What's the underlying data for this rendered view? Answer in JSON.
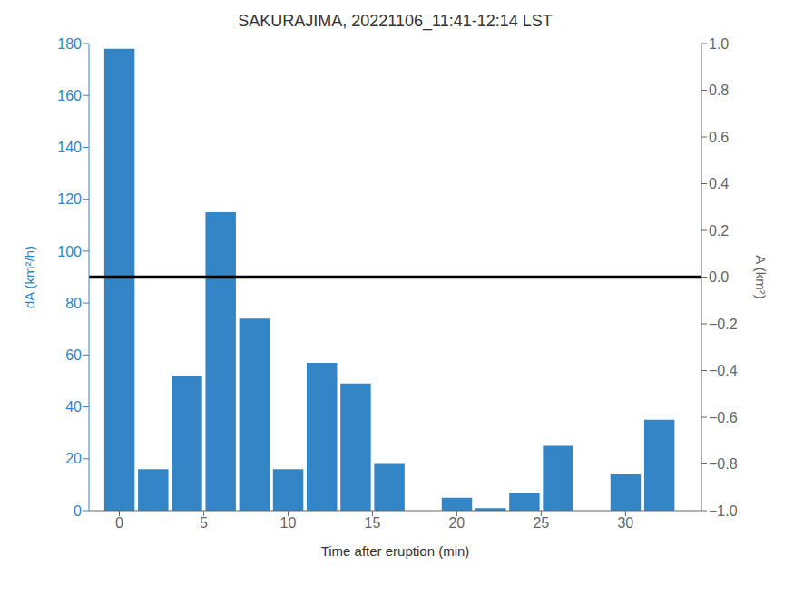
{
  "chart_data": {
    "type": "bar",
    "title": "SAKURAJIMA, 20221106_11:41-12:14 LST",
    "x_label": "Time after eruption (min)",
    "y_label": "dA (km²/h)",
    "y2_label": "A (km²)",
    "x": [
      0,
      2,
      4,
      6,
      8,
      10,
      12,
      14,
      16,
      20,
      22,
      24,
      26,
      30,
      32
    ],
    "values": [
      178,
      16,
      52,
      115,
      74,
      16,
      57,
      49,
      18,
      5,
      1,
      7,
      25,
      14,
      35
    ],
    "color": "#3385C6",
    "xlim": [
      -1.8,
      34.5
    ],
    "xticks": [
      0,
      5,
      10,
      15,
      20,
      25,
      30
    ],
    "ylim": [
      0,
      180
    ],
    "yticks": [
      0,
      20,
      40,
      60,
      80,
      100,
      120,
      140,
      160,
      180
    ],
    "y2lim": [
      -1,
      1
    ],
    "y2ticks": [
      {
        "value": -1.0,
        "label": "−1.0"
      },
      {
        "value": -0.8,
        "label": "−0.8"
      },
      {
        "value": -0.6,
        "label": "−0.6"
      },
      {
        "value": -0.4,
        "label": "−0.4"
      },
      {
        "value": -0.2,
        "label": "−0.2"
      },
      {
        "value": 0.0,
        "label": "0.0"
      },
      {
        "value": 0.2,
        "label": "0.2"
      },
      {
        "value": 0.4,
        "label": "0.4"
      },
      {
        "value": 0.6,
        "label": "0.6"
      },
      {
        "value": 0.8,
        "label": "0.8"
      },
      {
        "value": 1.0,
        "label": "1.0"
      }
    ],
    "reference_lines": [
      {
        "y": 90,
        "color": "black"
      }
    ],
    "grid": false
  }
}
